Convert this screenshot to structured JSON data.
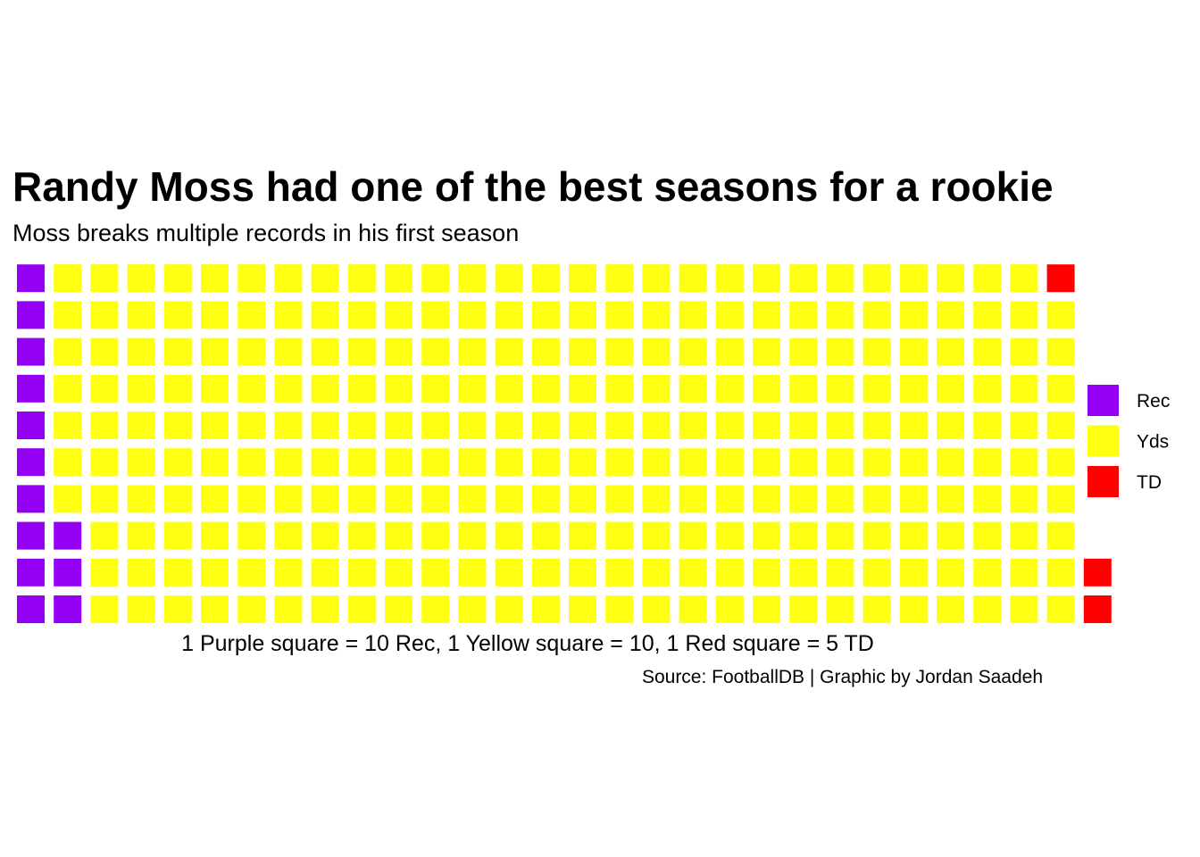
{
  "chart_data": {
    "type": "waffle",
    "title": "Randy Moss had one of the best seasons for a rookie",
    "subtitle": "Moss breaks multiple records in his first season",
    "caption": "1 Purple square = 10 Rec, 1 Yellow square = 10, 1 Red square = 5 TD",
    "source": "Source: FootballDB | Graphic by Jordan Saadeh",
    "rows": 10,
    "fill_order": "column-wise, bottom to top",
    "series": [
      {
        "name": "Rec",
        "squares": 13,
        "color": "#9400F4"
      },
      {
        "name": "Yds",
        "squares": 276,
        "color": "#FFFF11"
      },
      {
        "name": "TD",
        "squares": 3,
        "color": "#FF0000"
      }
    ],
    "legend_position": "right"
  }
}
